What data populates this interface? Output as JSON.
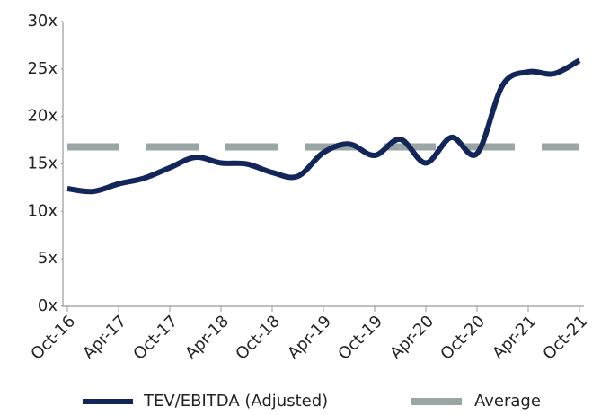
{
  "chart_data": {
    "type": "line",
    "categories": [
      "Oct-16",
      null,
      "Apr-17",
      null,
      "Oct-17",
      null,
      "Apr-18",
      null,
      "Oct-18",
      null,
      "Apr-19",
      null,
      "Oct-19",
      null,
      "Apr-20",
      null,
      "Oct-20",
      null,
      "Apr-21",
      null,
      "Oct-21"
    ],
    "series": [
      {
        "name": "TEV/EBITDA (Adjusted)",
        "color": "#13265a",
        "line_style": "solid",
        "values": [
          12.4,
          12.1,
          12.9,
          13.5,
          14.6,
          15.7,
          15.1,
          15.0,
          14.1,
          13.7,
          16.2,
          17.1,
          15.9,
          17.6,
          15.1,
          17.8,
          16.1,
          23.3,
          24.7,
          24.5,
          25.9
        ]
      },
      {
        "name": "Average",
        "color": "#9aa5a6",
        "line_style": "dashed",
        "values": [
          16.8,
          16.8,
          16.8,
          16.8,
          16.8,
          16.8,
          16.8,
          16.8,
          16.8,
          16.8,
          16.8,
          16.8,
          16.8,
          16.8,
          16.8,
          16.8,
          16.8,
          16.8,
          16.8,
          16.8,
          16.8
        ]
      }
    ],
    "ylim": [
      0,
      30
    ],
    "yticks": [
      {
        "value": 0,
        "label": "0x"
      },
      {
        "value": 5,
        "label": "5x"
      },
      {
        "value": 10,
        "label": "10x"
      },
      {
        "value": 15,
        "label": "15x"
      },
      {
        "value": 20,
        "label": "20x"
      },
      {
        "value": 25,
        "label": "25x"
      },
      {
        "value": 30,
        "label": "30x"
      }
    ],
    "grid": false,
    "legend": "bottom"
  }
}
